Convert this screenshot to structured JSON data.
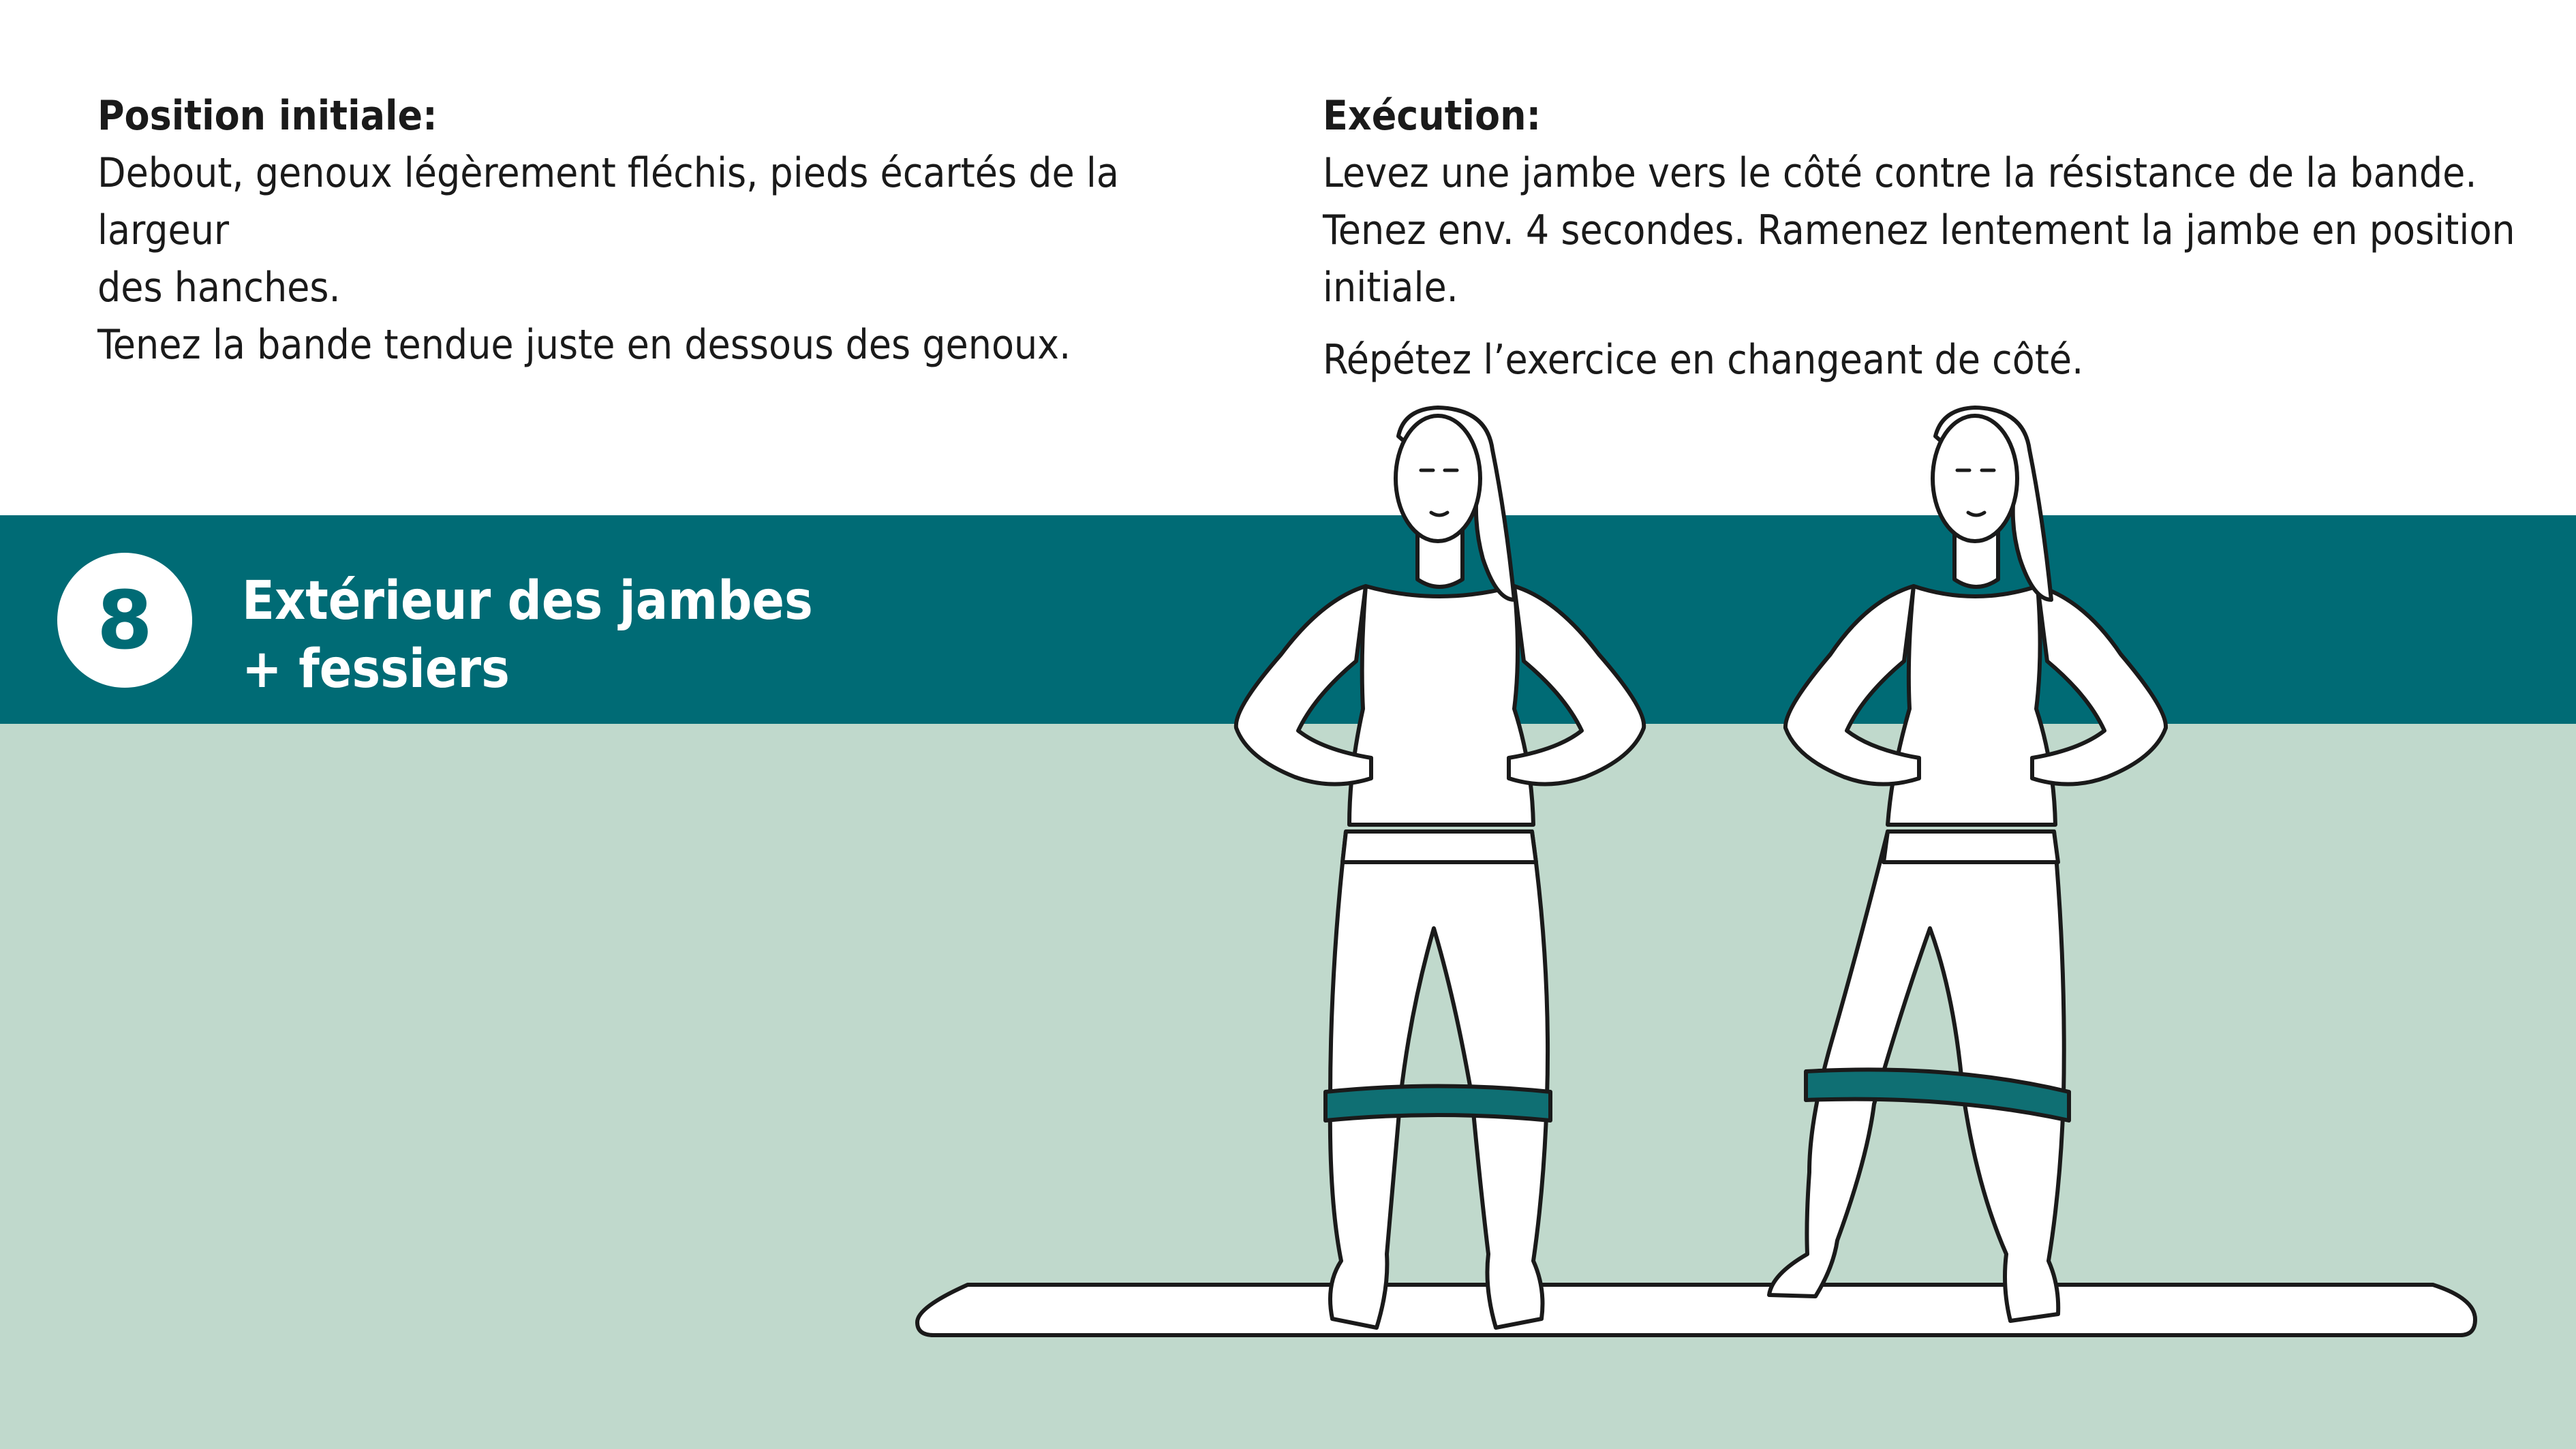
{
  "initial_position": {
    "heading": "Position initiale:",
    "lines": [
      "Debout, genoux légèrement fléchis, pieds écartés de la largeur",
      "des hanches.",
      "Tenez la bande tendue juste en dessous des genoux."
    ]
  },
  "execution": {
    "heading": "Exécution:",
    "lines": [
      "Levez une jambe vers le côté contre la résistance de la bande.",
      "Tenez env. 4 secondes. Ramenez lentement la jambe en position",
      "initiale."
    ],
    "repeat": "Répétez l’exercice en changeant de côté."
  },
  "exercise": {
    "number": "8",
    "title_line1": "Extérieur des jambes",
    "title_line2": "+ fessiers"
  },
  "colors": {
    "band": "#006b75",
    "panel": "#c0d9cc",
    "resistance_band": "#0f6f73"
  },
  "illustration": {
    "figure_1": "woman-standing-with-band-icon",
    "figure_2": "woman-leg-raise-with-band-icon",
    "mat": "exercise-mat-icon"
  }
}
